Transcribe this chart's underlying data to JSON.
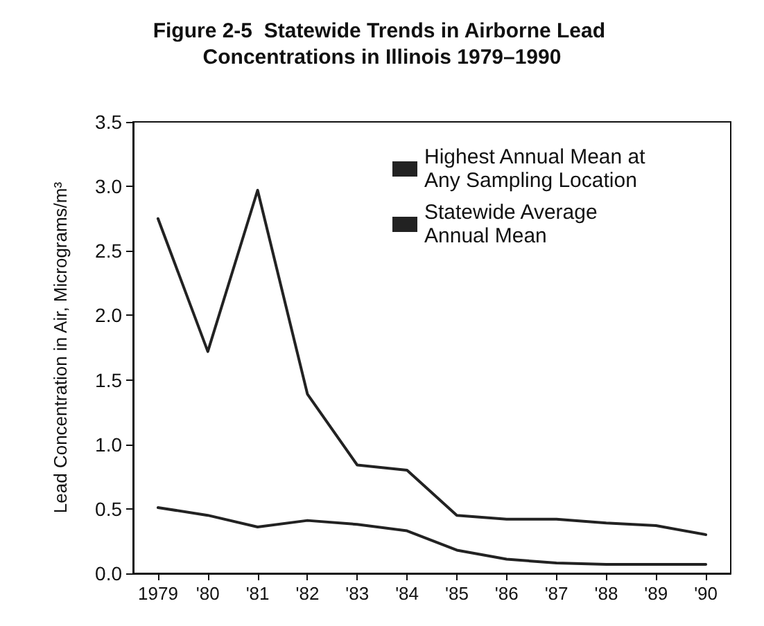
{
  "chart_data": {
    "type": "line",
    "title": "Figure 2-5  Statewide Trends in Airborne Lead Concentrations in Illinois 1979–1990",
    "ylabel": "Lead Concentration in Air, Micrograms/m³",
    "categories": [
      "1979",
      "'80",
      "'81",
      "'82",
      "'83",
      "'84",
      "'85",
      "'86",
      "'87",
      "'88",
      "'89",
      "'90"
    ],
    "series": [
      {
        "name": "Highest Annual Mean at Any Sampling Location",
        "color": "#222222",
        "values": [
          2.75,
          1.72,
          2.97,
          1.39,
          0.84,
          0.8,
          0.45,
          0.42,
          0.42,
          0.39,
          0.37,
          0.3
        ]
      },
      {
        "name": "Statewide Average Annual Mean",
        "color": "#222222",
        "values": [
          0.51,
          0.45,
          0.36,
          0.41,
          0.38,
          0.33,
          0.18,
          0.11,
          0.08,
          0.07,
          0.07,
          0.07
        ]
      }
    ],
    "ylim": [
      0,
      3.5
    ],
    "yticks": [
      "0.0",
      0.5,
      "1.0",
      1.5,
      "2.0",
      2.5,
      "3.0",
      3.5
    ],
    "grid": false,
    "legend": "top right",
    "marker": "none",
    "line_style": "solid"
  }
}
